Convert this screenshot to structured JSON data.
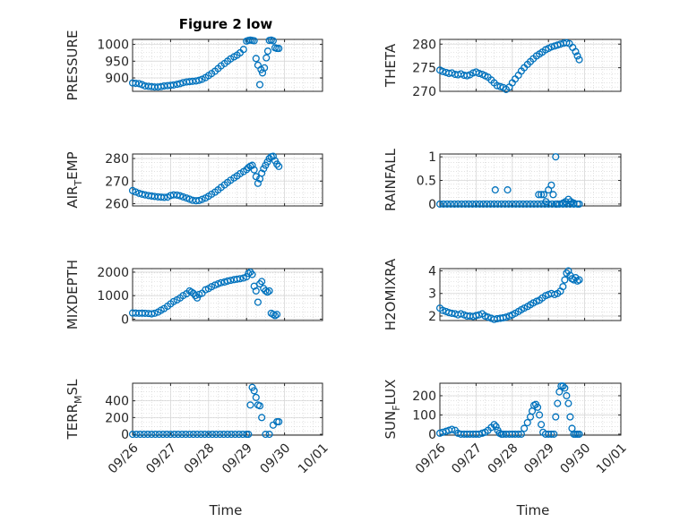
{
  "figure": {
    "title": "Figure 2 low"
  },
  "colors": {
    "marker": "#0072BD",
    "axis": "#262626",
    "grid": "#cfcfcf"
  },
  "x_ticks": [
    "09/26",
    "09/27",
    "09/28",
    "09/29",
    "09/30",
    "10/01"
  ],
  "xlabel": "Time",
  "chart_data": [
    {
      "id": "pressure",
      "type": "scatter",
      "title": "Figure 2 low",
      "ylabel": "PRESSURE",
      "xlim": [
        0,
        5
      ],
      "ylim": [
        860,
        1015
      ],
      "yticks": [
        900,
        950,
        1000
      ],
      "ytick_labels": [
        "900",
        "950",
        "1000"
      ],
      "grid": true,
      "marker": "circle",
      "x": [
        0.0,
        0.08,
        0.17,
        0.25,
        0.33,
        0.42,
        0.5,
        0.58,
        0.67,
        0.75,
        0.83,
        0.92,
        1.0,
        1.08,
        1.17,
        1.25,
        1.33,
        1.42,
        1.5,
        1.58,
        1.67,
        1.75,
        1.83,
        1.92,
        2.0,
        2.08,
        2.17,
        2.25,
        2.33,
        2.42,
        2.5,
        2.58,
        2.67,
        2.75,
        2.83,
        2.92,
        3.0,
        3.05,
        3.1,
        3.15,
        3.2,
        3.25,
        3.3,
        3.35,
        3.38,
        3.42,
        3.47,
        3.52,
        3.56,
        3.6,
        3.65,
        3.7,
        3.75,
        3.8,
        3.85
      ],
      "y": [
        885,
        884,
        883,
        880,
        876,
        875,
        874,
        873,
        873,
        874,
        876,
        877,
        878,
        879,
        881,
        883,
        886,
        888,
        889,
        890,
        891,
        893,
        896,
        901,
        907,
        913,
        920,
        928,
        936,
        943,
        950,
        957,
        963,
        968,
        975,
        985,
        1010,
        1012,
        1013,
        1012,
        1011,
        958,
        938,
        880,
        925,
        915,
        930,
        960,
        980,
        1012,
        1013,
        1011,
        990,
        988,
        988
      ]
    },
    {
      "id": "theta",
      "type": "scatter",
      "title": "",
      "ylabel": "THETA",
      "xlim": [
        0,
        5
      ],
      "ylim": [
        270,
        281
      ],
      "yticks": [
        270,
        275,
        280
      ],
      "ytick_labels": [
        "270",
        "275",
        "280"
      ],
      "grid": true,
      "marker": "circle",
      "x": [
        0.0,
        0.08,
        0.17,
        0.25,
        0.33,
        0.42,
        0.5,
        0.58,
        0.67,
        0.75,
        0.83,
        0.92,
        1.0,
        1.08,
        1.17,
        1.25,
        1.33,
        1.42,
        1.5,
        1.58,
        1.67,
        1.75,
        1.83,
        1.92,
        2.0,
        2.08,
        2.17,
        2.25,
        2.33,
        2.42,
        2.5,
        2.58,
        2.67,
        2.75,
        2.83,
        2.92,
        3.0,
        3.08,
        3.17,
        3.25,
        3.33,
        3.42,
        3.5,
        3.58,
        3.67,
        3.75,
        3.8,
        3.85
      ],
      "y": [
        274.5,
        274.2,
        274.0,
        273.8,
        273.9,
        273.6,
        273.5,
        273.7,
        273.4,
        273.3,
        273.5,
        273.9,
        274.1,
        273.8,
        273.6,
        273.3,
        273.0,
        272.4,
        271.8,
        271.2,
        271.0,
        270.8,
        270.4,
        270.9,
        271.8,
        272.6,
        273.4,
        274.3,
        275.0,
        275.7,
        276.3,
        276.9,
        277.5,
        277.9,
        278.3,
        278.8,
        279.1,
        279.4,
        279.6,
        279.8,
        280.0,
        280.2,
        280.3,
        280.1,
        279.3,
        278.4,
        277.5,
        276.7
      ]
    },
    {
      "id": "air_temp",
      "type": "scatter",
      "title": "",
      "ylabel": "AIR_TEMP",
      "xlim": [
        0,
        5
      ],
      "ylim": [
        259,
        282
      ],
      "yticks": [
        260,
        270,
        280
      ],
      "ytick_labels": [
        "260",
        "270",
        "280"
      ],
      "grid": true,
      "marker": "circle",
      "x": [
        0.0,
        0.08,
        0.17,
        0.25,
        0.33,
        0.42,
        0.5,
        0.58,
        0.67,
        0.75,
        0.83,
        0.92,
        1.0,
        1.08,
        1.17,
        1.25,
        1.33,
        1.42,
        1.5,
        1.58,
        1.67,
        1.75,
        1.83,
        1.92,
        2.0,
        2.08,
        2.17,
        2.25,
        2.33,
        2.42,
        2.5,
        2.58,
        2.67,
        2.75,
        2.83,
        2.92,
        3.0,
        3.05,
        3.1,
        3.15,
        3.2,
        3.25,
        3.3,
        3.35,
        3.4,
        3.45,
        3.5,
        3.55,
        3.6,
        3.65,
        3.7,
        3.75,
        3.8,
        3.85
      ],
      "y": [
        265.8,
        265.2,
        264.6,
        264.2,
        263.9,
        263.6,
        263.4,
        263.2,
        263.0,
        262.9,
        262.8,
        262.9,
        263.6,
        263.9,
        263.8,
        263.5,
        263.0,
        262.5,
        262.0,
        261.5,
        261.3,
        261.4,
        261.9,
        262.5,
        263.3,
        264.2,
        265.1,
        266.1,
        267.2,
        268.3,
        269.4,
        270.4,
        271.4,
        272.3,
        273.3,
        274.2,
        275.1,
        276.0,
        276.6,
        277.0,
        275.0,
        272.0,
        269.0,
        271.0,
        273.5,
        275.5,
        277.0,
        278.5,
        280.0,
        280.8,
        281.0,
        279.0,
        277.5,
        276.5
      ]
    },
    {
      "id": "rainfall",
      "type": "scatter",
      "title": "",
      "ylabel": "RAINFALL",
      "xlim": [
        0,
        5
      ],
      "ylim": [
        -0.04,
        1.06
      ],
      "yticks": [
        0,
        0.5,
        1
      ],
      "ytick_labels": [
        "0",
        "0.5",
        "1"
      ],
      "grid": true,
      "marker": "circle",
      "x": [
        0.0,
        0.1,
        0.2,
        0.3,
        0.4,
        0.5,
        0.6,
        0.7,
        0.8,
        0.9,
        1.0,
        1.1,
        1.2,
        1.3,
        1.4,
        1.5,
        1.6,
        1.7,
        1.8,
        1.9,
        2.0,
        2.1,
        2.2,
        2.3,
        2.4,
        2.5,
        2.6,
        2.7,
        2.8,
        2.9,
        3.0,
        3.1,
        3.2,
        3.3,
        3.4,
        3.5,
        3.6,
        3.7,
        3.8,
        3.85,
        1.53,
        1.87,
        2.73,
        2.8,
        2.87,
        2.93,
        3.0,
        3.08,
        3.13,
        3.2,
        3.23,
        3.4,
        3.47,
        3.55,
        3.62,
        3.7
      ],
      "y": [
        0,
        0,
        0,
        0,
        0,
        0,
        0,
        0,
        0,
        0,
        0,
        0,
        0,
        0,
        0,
        0,
        0,
        0,
        0,
        0,
        0,
        0,
        0,
        0,
        0,
        0,
        0,
        0,
        0,
        0,
        0,
        0,
        0,
        0,
        0,
        0,
        0,
        0,
        0,
        0,
        0.3,
        0.3,
        0.2,
        0.2,
        0.2,
        0.05,
        0.3,
        0.4,
        0.2,
        1.0,
        0.0,
        0.02,
        0.05,
        0.1,
        0.05,
        0.02
      ]
    },
    {
      "id": "mixdepth",
      "type": "scatter",
      "title": "",
      "ylabel": "MIXDEPTH",
      "xlim": [
        0,
        5
      ],
      "ylim": [
        -60,
        2150
      ],
      "yticks": [
        0,
        1000,
        2000
      ],
      "ytick_labels": [
        "0",
        "1000",
        "2000"
      ],
      "grid": true,
      "marker": "circle",
      "x": [
        0.0,
        0.08,
        0.17,
        0.25,
        0.33,
        0.42,
        0.5,
        0.58,
        0.67,
        0.75,
        0.83,
        0.92,
        1.0,
        1.08,
        1.17,
        1.25,
        1.33,
        1.42,
        1.5,
        1.55,
        1.6,
        1.65,
        1.7,
        1.75,
        1.83,
        1.92,
        2.0,
        2.08,
        2.17,
        2.25,
        2.33,
        2.42,
        2.5,
        2.58,
        2.67,
        2.75,
        2.83,
        2.92,
        3.0,
        3.05,
        3.1,
        3.15,
        3.2,
        3.25,
        3.3,
        3.35,
        3.4,
        3.45,
        3.5,
        3.55,
        3.6,
        3.65,
        3.7,
        3.75,
        3.8
      ],
      "y": [
        260,
        255,
        250,
        252,
        248,
        240,
        225,
        250,
        300,
        380,
        450,
        550,
        650,
        750,
        820,
        900,
        1000,
        1080,
        1200,
        1150,
        1100,
        1000,
        900,
        1050,
        1100,
        1250,
        1300,
        1380,
        1450,
        1500,
        1550,
        1580,
        1620,
        1650,
        1680,
        1700,
        1720,
        1750,
        1800,
        1950,
        2000,
        1900,
        1400,
        1200,
        720,
        1500,
        1600,
        1300,
        1200,
        1150,
        1200,
        250,
        200,
        150,
        200
      ]
    },
    {
      "id": "h2omixra",
      "type": "scatter",
      "title": "",
      "ylabel": "H2OMIXRA",
      "xlim": [
        0,
        5
      ],
      "ylim": [
        1.8,
        4.1
      ],
      "yticks": [
        2,
        3,
        4
      ],
      "ytick_labels": [
        "2",
        "3",
        "4"
      ],
      "grid": true,
      "marker": "circle",
      "x": [
        0.0,
        0.08,
        0.17,
        0.25,
        0.33,
        0.42,
        0.5,
        0.58,
        0.67,
        0.75,
        0.83,
        0.92,
        1.0,
        1.08,
        1.17,
        1.25,
        1.33,
        1.42,
        1.5,
        1.58,
        1.67,
        1.75,
        1.83,
        1.92,
        2.0,
        2.08,
        2.17,
        2.25,
        2.33,
        2.42,
        2.5,
        2.58,
        2.67,
        2.75,
        2.83,
        2.92,
        3.0,
        3.08,
        3.17,
        3.25,
        3.33,
        3.4,
        3.45,
        3.5,
        3.55,
        3.6,
        3.65,
        3.7,
        3.75,
        3.8,
        3.85
      ],
      "y": [
        2.35,
        2.25,
        2.2,
        2.15,
        2.12,
        2.1,
        2.05,
        2.1,
        2.05,
        2.0,
        2.0,
        1.98,
        2.02,
        2.05,
        2.1,
        2.0,
        1.95,
        1.9,
        1.85,
        1.88,
        1.9,
        1.92,
        1.95,
        2.0,
        2.05,
        2.12,
        2.2,
        2.28,
        2.35,
        2.42,
        2.5,
        2.58,
        2.65,
        2.7,
        2.8,
        2.9,
        2.95,
        3.0,
        2.95,
        3.0,
        3.1,
        3.3,
        3.6,
        3.9,
        4.0,
        3.8,
        3.65,
        3.6,
        3.7,
        3.55,
        3.6
      ]
    },
    {
      "id": "terr_msl",
      "type": "scatter",
      "title": "",
      "ylabel": "TERR_MSL",
      "xlim": [
        0,
        5
      ],
      "ylim": [
        -10,
        610
      ],
      "yticks": [
        0,
        200,
        400
      ],
      "ytick_labels": [
        "0",
        "200",
        "400"
      ],
      "grid": true,
      "marker": "circle",
      "x": [
        0.0,
        0.1,
        0.2,
        0.3,
        0.4,
        0.5,
        0.6,
        0.7,
        0.8,
        0.9,
        1.0,
        1.1,
        1.2,
        1.3,
        1.4,
        1.5,
        1.6,
        1.7,
        1.8,
        1.9,
        2.0,
        2.1,
        2.2,
        2.3,
        2.4,
        2.5,
        2.6,
        2.7,
        2.8,
        2.9,
        3.0,
        3.05,
        3.1,
        3.15,
        3.2,
        3.25,
        3.3,
        3.35,
        3.4,
        3.5,
        3.6,
        3.7,
        3.8,
        3.85
      ],
      "y": [
        0,
        0,
        0,
        0,
        0,
        0,
        0,
        0,
        0,
        0,
        0,
        0,
        0,
        0,
        0,
        0,
        0,
        0,
        0,
        0,
        0,
        0,
        0,
        0,
        0,
        0,
        0,
        0,
        0,
        0,
        0,
        0,
        350,
        560,
        520,
        440,
        350,
        340,
        200,
        0,
        0,
        110,
        150,
        150
      ]
    },
    {
      "id": "sun_flux",
      "type": "scatter",
      "title": "",
      "ylabel": "SUN_FLUX",
      "xlim": [
        0,
        5
      ],
      "ylim": [
        -5,
        265
      ],
      "yticks": [
        0,
        100,
        200
      ],
      "ytick_labels": [
        "0",
        "100",
        "200"
      ],
      "grid": true,
      "marker": "circle",
      "x": [
        0.0,
        0.08,
        0.17,
        0.25,
        0.33,
        0.42,
        0.5,
        0.58,
        0.67,
        0.75,
        0.83,
        0.92,
        1.0,
        1.08,
        1.17,
        1.25,
        1.33,
        1.42,
        1.5,
        1.55,
        1.6,
        1.65,
        1.7,
        1.75,
        1.83,
        1.92,
        2.0,
        2.08,
        2.17,
        2.25,
        2.33,
        2.42,
        2.5,
        2.55,
        2.6,
        2.65,
        2.7,
        2.75,
        2.8,
        2.85,
        2.92,
        3.0,
        3.08,
        3.15,
        3.2,
        3.25,
        3.3,
        3.35,
        3.4,
        3.45,
        3.5,
        3.55,
        3.6,
        3.65,
        3.7,
        3.75,
        3.8,
        3.85
      ],
      "y": [
        5,
        10,
        15,
        20,
        25,
        20,
        5,
        0,
        0,
        0,
        0,
        0,
        0,
        0,
        5,
        10,
        20,
        35,
        50,
        40,
        20,
        5,
        0,
        0,
        0,
        0,
        0,
        0,
        0,
        0,
        30,
        60,
        90,
        120,
        150,
        155,
        140,
        100,
        50,
        10,
        0,
        0,
        0,
        0,
        90,
        160,
        220,
        250,
        250,
        240,
        200,
        160,
        90,
        30,
        0,
        0,
        0,
        0
      ]
    }
  ]
}
